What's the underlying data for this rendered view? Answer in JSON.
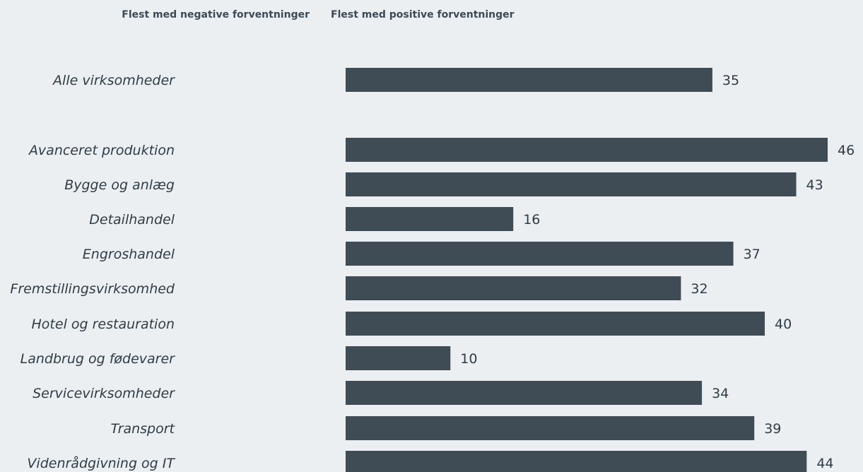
{
  "chart_data": {
    "type": "bar",
    "orientation": "horizontal",
    "header_negative": "Flest med negative forventninger",
    "header_positive": "Flest med positive forventninger",
    "categories": [
      "Alle virksomheder",
      "Avanceret produktion",
      "Bygge og anlæg",
      "Detailhandel",
      "Engroshandel",
      "Fremstillingsvirksomhed",
      "Hotel og restauration",
      "Landbrug og fødevarer",
      "Servicevirksomheder",
      "Transport",
      "Videnrådgivning og IT"
    ],
    "values": [
      35,
      46,
      43,
      16,
      37,
      32,
      40,
      10,
      34,
      39,
      44
    ],
    "xlim": [
      0,
      46
    ],
    "bar_color": "#3f4c55",
    "grid": false,
    "legend": "none"
  }
}
